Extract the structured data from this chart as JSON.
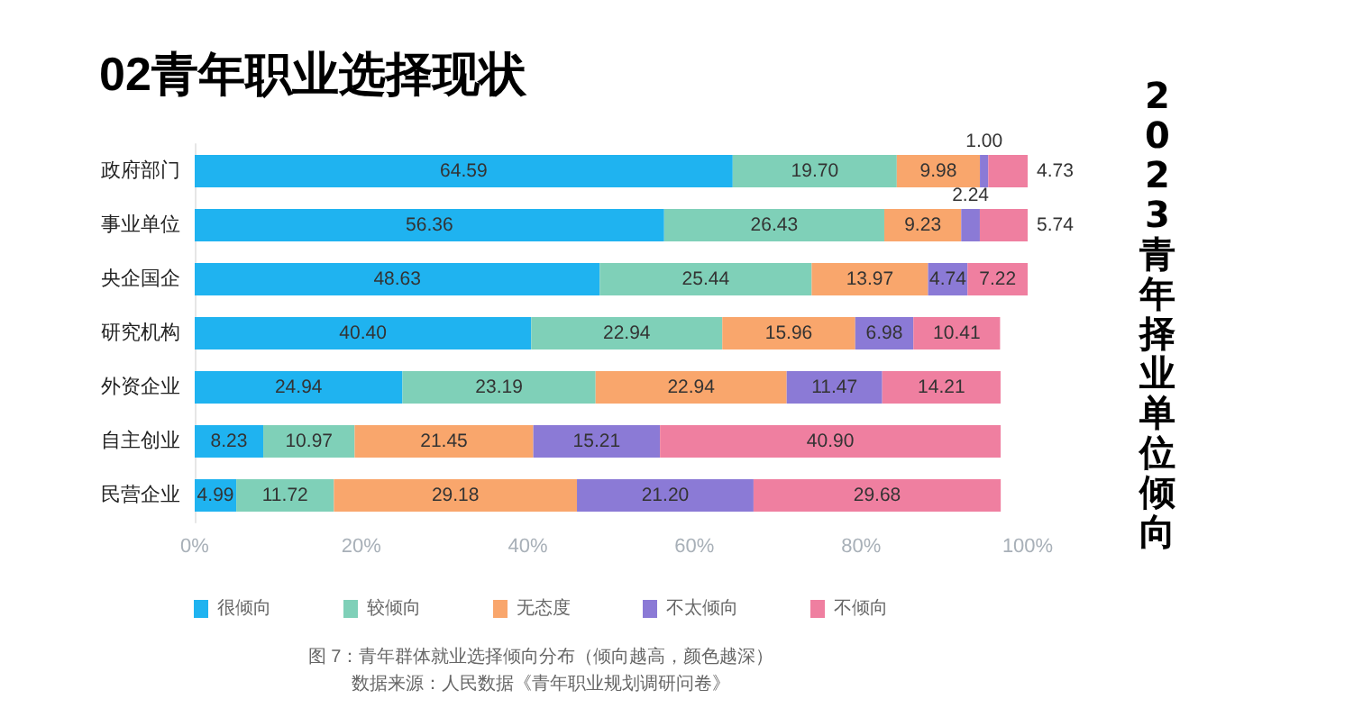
{
  "chart_data": {
    "type": "bar",
    "orientation": "horizontal",
    "stacked": true,
    "title": "02青年职业选择现状",
    "subtitle": "2023青年择业单位倾向",
    "categories": [
      "政府部门",
      "事业单位",
      "央企国企",
      "研究机构",
      "外资企业",
      "自主创业",
      "民营企业"
    ],
    "series": [
      {
        "name": "很倾向",
        "color": "#1fb3f0",
        "values": [
          64.59,
          56.36,
          48.63,
          40.4,
          24.94,
          8.23,
          4.99
        ],
        "value_labels": [
          "64.59",
          "56.36",
          "48.63",
          "40.40",
          "24.94",
          "8.23",
          "4.99"
        ]
      },
      {
        "name": "较倾向",
        "color": "#7fd0b8",
        "values": [
          19.7,
          26.43,
          25.44,
          22.94,
          23.19,
          10.97,
          11.72
        ],
        "value_labels": [
          "19.70",
          "26.43",
          "25.44",
          "22.94",
          "23.19",
          "10.97",
          "11.72"
        ]
      },
      {
        "name": "无态度",
        "color": "#f9a66c",
        "values": [
          9.98,
          9.23,
          13.97,
          15.96,
          22.94,
          21.45,
          29.18
        ],
        "value_labels": [
          "9.98",
          "9.23",
          "13.97",
          "15.96",
          "22.94",
          "21.45",
          "29.18"
        ]
      },
      {
        "name": "不太倾向",
        "color": "#8b7ad6",
        "values": [
          1.0,
          2.24,
          4.74,
          6.98,
          11.47,
          15.21,
          21.2
        ],
        "value_labels": [
          "1.00",
          "2.24",
          "4.74",
          "6.98",
          "11.47",
          "15.21",
          "21.20"
        ]
      },
      {
        "name": "不倾向",
        "color": "#ef7fa0",
        "values": [
          4.73,
          5.74,
          7.22,
          10.41,
          14.21,
          40.9,
          29.68
        ],
        "value_labels": [
          "4.73",
          "5.74",
          "7.22",
          "10.41",
          "14.21",
          "40.90",
          "29.68"
        ]
      }
    ],
    "xlim": [
      0,
      100
    ],
    "xticks": [
      {
        "value": 0,
        "label": "0%"
      },
      {
        "value": 20,
        "label": "20%"
      },
      {
        "value": 40,
        "label": "40%"
      },
      {
        "value": 60,
        "label": "60%"
      },
      {
        "value": 80,
        "label": "80%"
      },
      {
        "value": 100,
        "label": "100%"
      }
    ],
    "grid": false,
    "legend": "bottom",
    "annotations": [
      "图 7：青年群体就业选择倾向分布（倾向越高，颜色越深）",
      "数据来源：人民数据《青年职业规划调研问卷》"
    ]
  }
}
